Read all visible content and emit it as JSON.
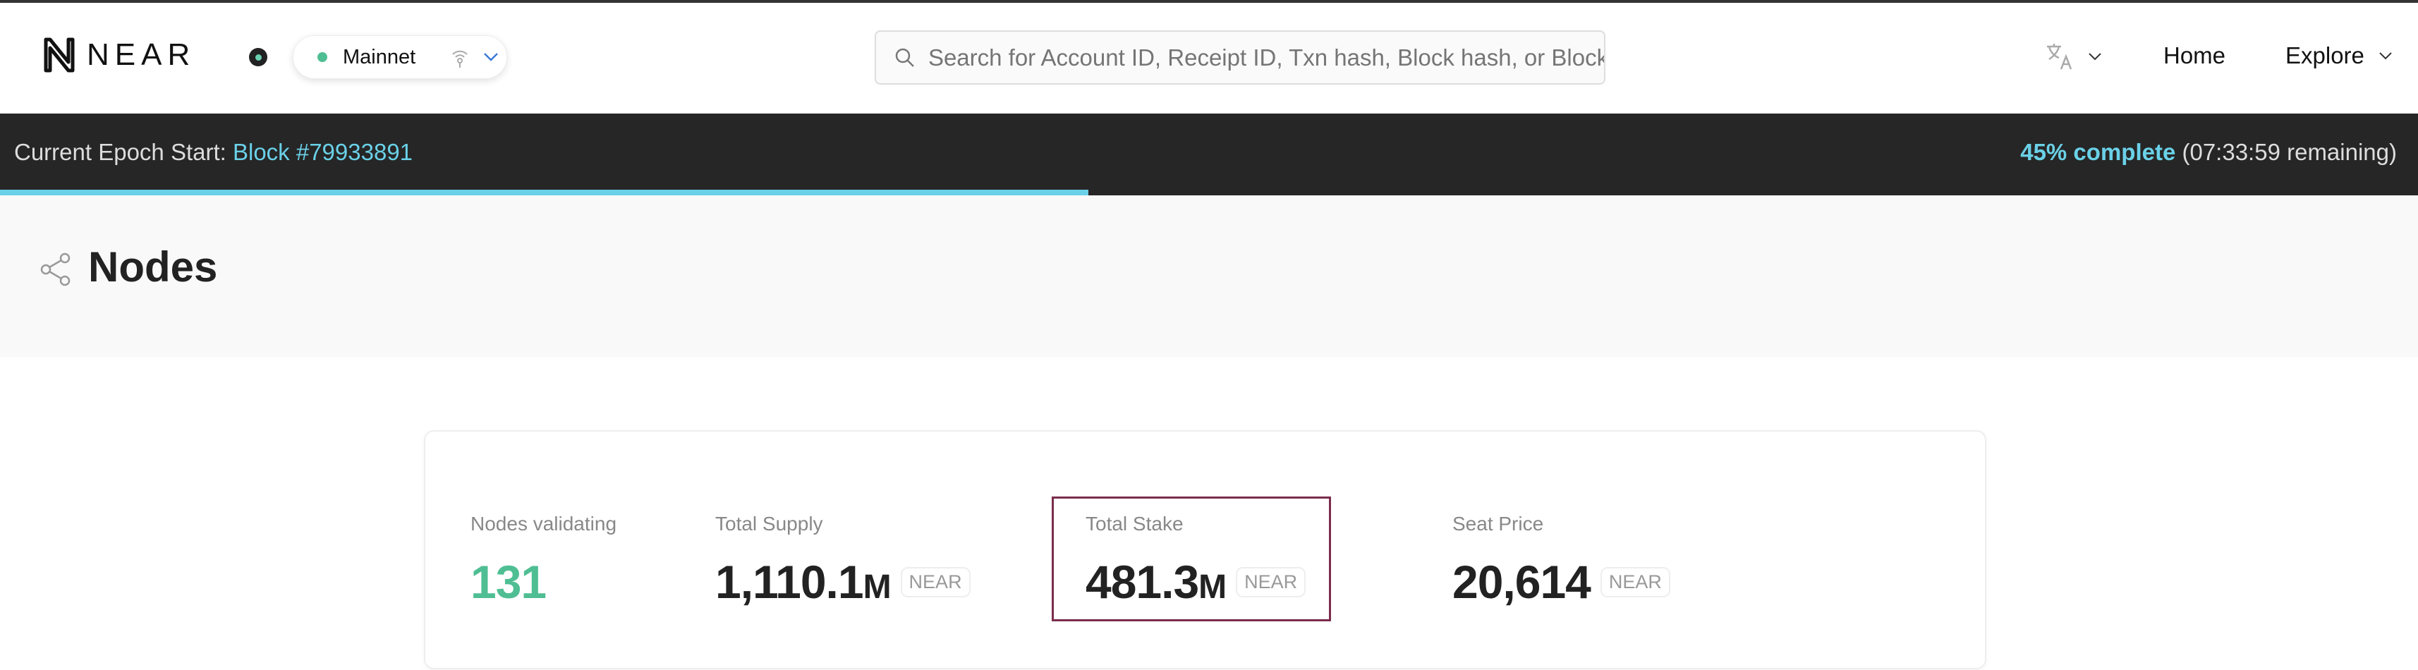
{
  "header": {
    "logo_text": "NEAR",
    "network": "Mainnet",
    "search_placeholder": "Search for Account ID, Receipt ID, Txn hash, Block hash, or Block height",
    "nav": {
      "home": "Home",
      "explore": "Explore"
    }
  },
  "epoch": {
    "label": "Current Epoch Start:",
    "block": "Block #79933891",
    "complete": "45% complete",
    "remaining": "(07:33:59 remaining)",
    "progress_percent": 45,
    "accent": "#6ad1e8"
  },
  "page": {
    "title": "Nodes"
  },
  "stats": [
    {
      "label": "Nodes validating",
      "value": "131",
      "unit": "",
      "badge": "",
      "color": "#4fbe93"
    },
    {
      "label": "Total Supply",
      "value": "1,110.1",
      "unit": "M",
      "badge": "NEAR"
    },
    {
      "label": "Total Stake",
      "value": "481.3",
      "unit": "M",
      "badge": "NEAR",
      "highlighted": true,
      "highlight_color": "#7b2d4c"
    },
    {
      "label": "Seat Price",
      "value": "20,614",
      "unit": "",
      "badge": "NEAR"
    }
  ]
}
